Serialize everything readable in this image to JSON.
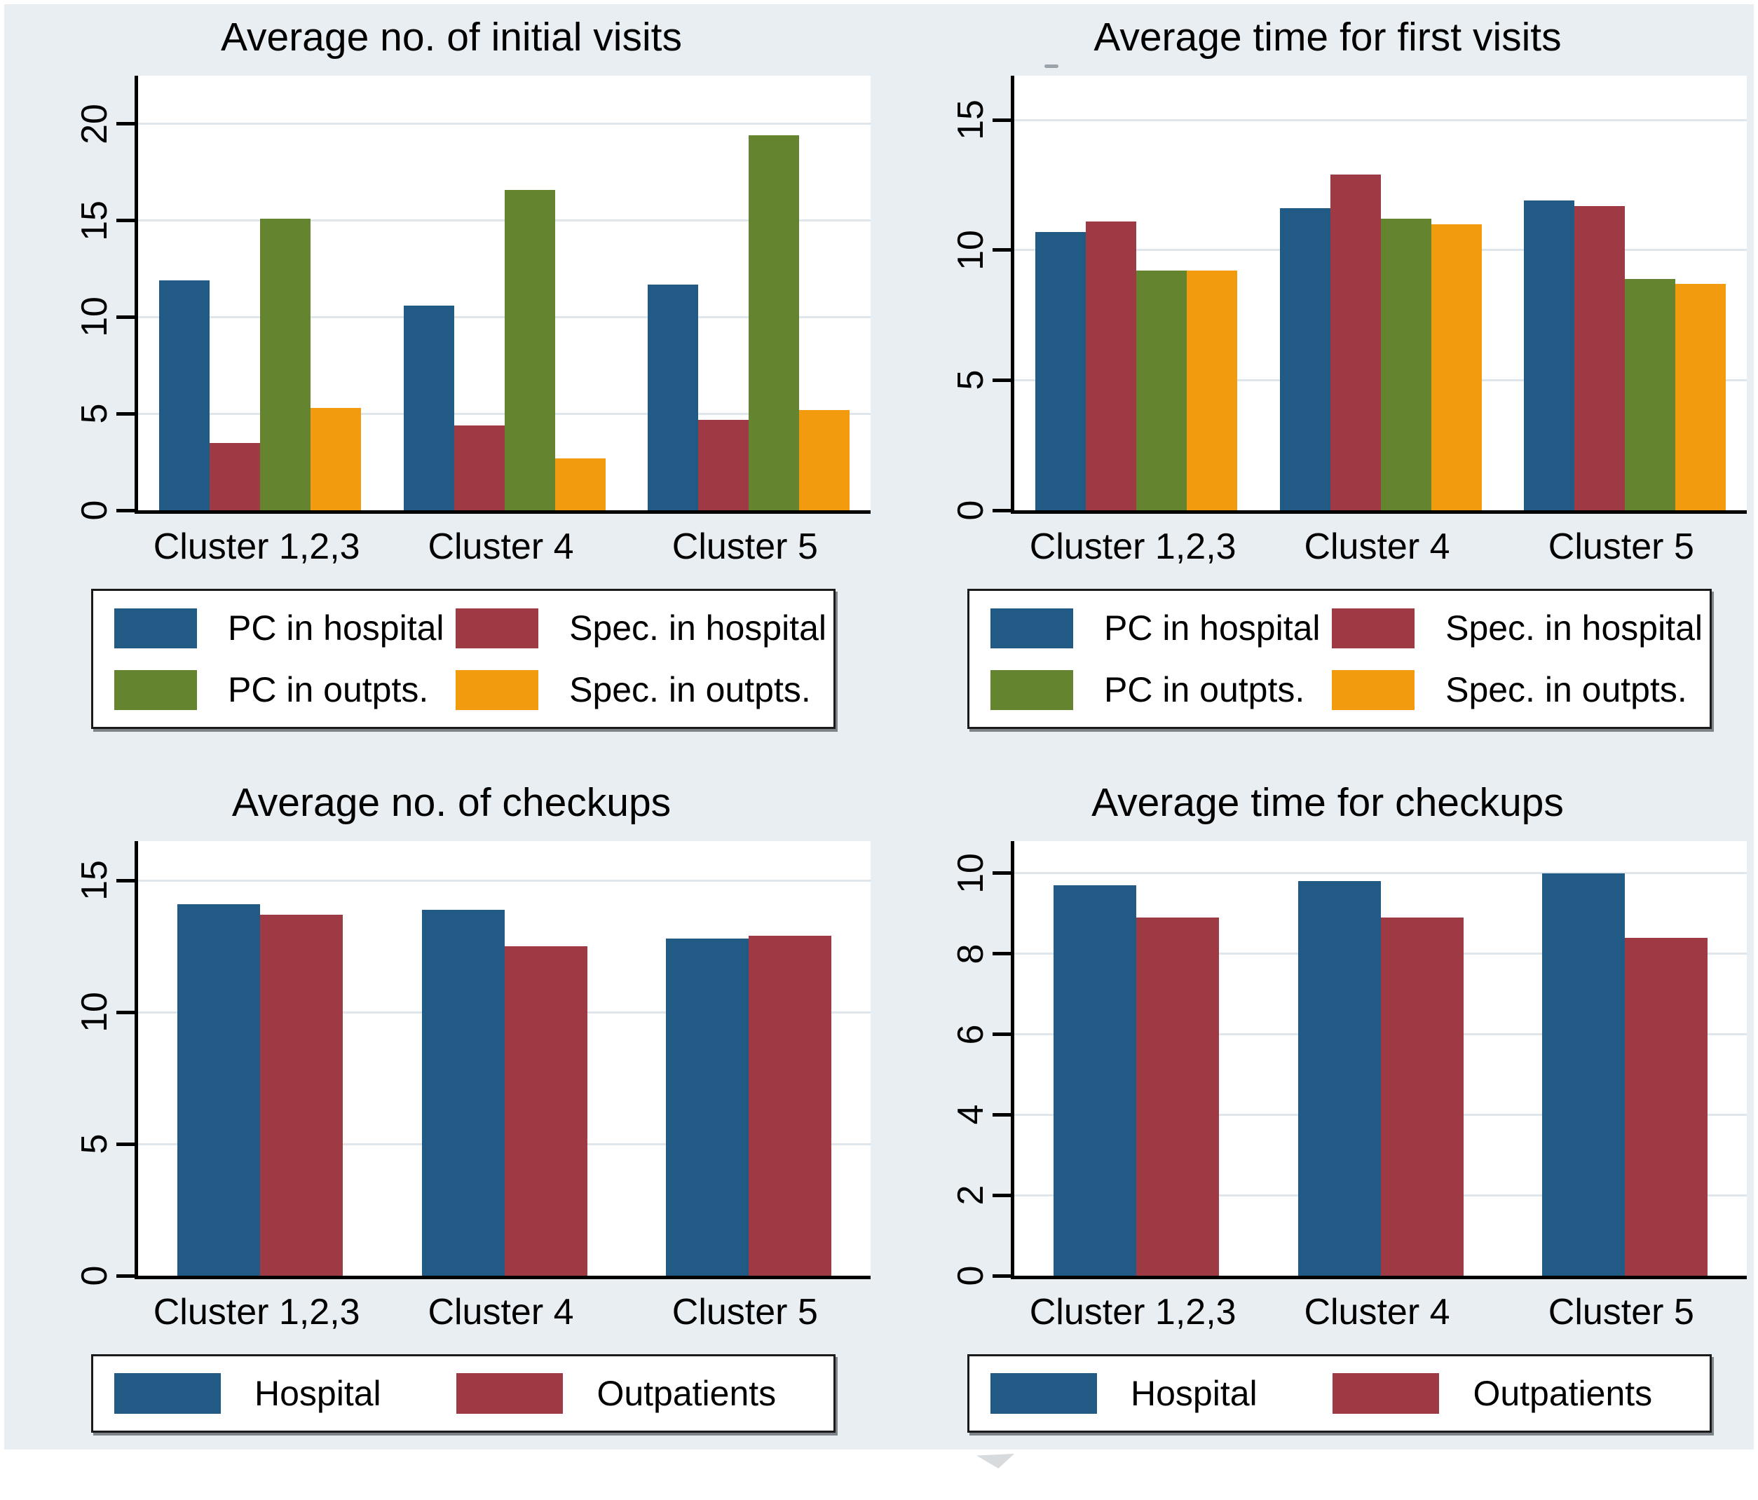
{
  "figure": {
    "background": "#e9eef2",
    "plot_background": "#ffffff",
    "gridline_color": "#dfe6ec",
    "axis_color": "#000000",
    "colors": {
      "blue": "#215a85",
      "red": "#9d3a44",
      "green": "#64842f",
      "orange": "#f29b0f"
    }
  },
  "chart_data": [
    {
      "id": "avg-initial-visits",
      "type": "bar",
      "title": "Average no. of initial visits",
      "categories": [
        "Cluster 1,2,3",
        "Cluster 4",
        "Cluster 5"
      ],
      "series": [
        {
          "name": "PC in hospital",
          "color": "blue",
          "values": [
            11.9,
            10.6,
            11.7
          ]
        },
        {
          "name": "Spec. in hospital",
          "color": "red",
          "values": [
            3.5,
            4.4,
            4.7
          ]
        },
        {
          "name": "PC in outpts.",
          "color": "green",
          "values": [
            15.1,
            16.6,
            19.4
          ]
        },
        {
          "name": "Spec. in outpts.",
          "color": "orange",
          "values": [
            5.3,
            2.7,
            5.2
          ]
        }
      ],
      "yticks": [
        0,
        5,
        10,
        15,
        20
      ],
      "ylim": [
        0,
        22.5
      ],
      "grid": true,
      "legend_position": "bottom"
    },
    {
      "id": "avg-time-first-visits",
      "type": "bar",
      "title": "Average time for first visits",
      "categories": [
        "Cluster 1,2,3",
        "Cluster 4",
        "Cluster 5"
      ],
      "series": [
        {
          "name": "PC in hospital",
          "color": "blue",
          "values": [
            10.7,
            11.6,
            11.9
          ]
        },
        {
          "name": "Spec. in hospital",
          "color": "red",
          "values": [
            11.1,
            12.9,
            11.7
          ]
        },
        {
          "name": "PC in outpts.",
          "color": "green",
          "values": [
            9.2,
            11.2,
            8.9
          ]
        },
        {
          "name": "Spec. in outpts.",
          "color": "orange",
          "values": [
            9.2,
            11.0,
            8.7
          ]
        }
      ],
      "yticks": [
        0,
        5,
        10,
        15
      ],
      "ylim": [
        0,
        16.7
      ],
      "grid": true,
      "legend_position": "bottom"
    },
    {
      "id": "avg-no-checkups",
      "type": "bar",
      "title": "Average no. of checkups",
      "categories": [
        "Cluster 1,2,3",
        "Cluster 4",
        "Cluster 5"
      ],
      "series": [
        {
          "name": "Hospital",
          "color": "blue",
          "values": [
            14.1,
            13.9,
            12.8
          ]
        },
        {
          "name": "Outpatients",
          "color": "red",
          "values": [
            13.7,
            12.5,
            12.9
          ]
        }
      ],
      "yticks": [
        0,
        5,
        10,
        15
      ],
      "ylim": [
        0,
        16.5
      ],
      "grid": true,
      "legend_position": "bottom"
    },
    {
      "id": "avg-time-checkups",
      "type": "bar",
      "title": "Average time for checkups",
      "categories": [
        "Cluster 1,2,3",
        "Cluster 4",
        "Cluster 5"
      ],
      "series": [
        {
          "name": "Hospital",
          "color": "blue",
          "values": [
            9.7,
            9.8,
            10.0
          ]
        },
        {
          "name": "Outpatients",
          "color": "red",
          "values": [
            8.9,
            8.9,
            8.4
          ]
        }
      ],
      "yticks": [
        0,
        2,
        4,
        6,
        8,
        10
      ],
      "ylim": [
        0,
        10.8
      ],
      "grid": true,
      "legend_position": "bottom"
    }
  ]
}
